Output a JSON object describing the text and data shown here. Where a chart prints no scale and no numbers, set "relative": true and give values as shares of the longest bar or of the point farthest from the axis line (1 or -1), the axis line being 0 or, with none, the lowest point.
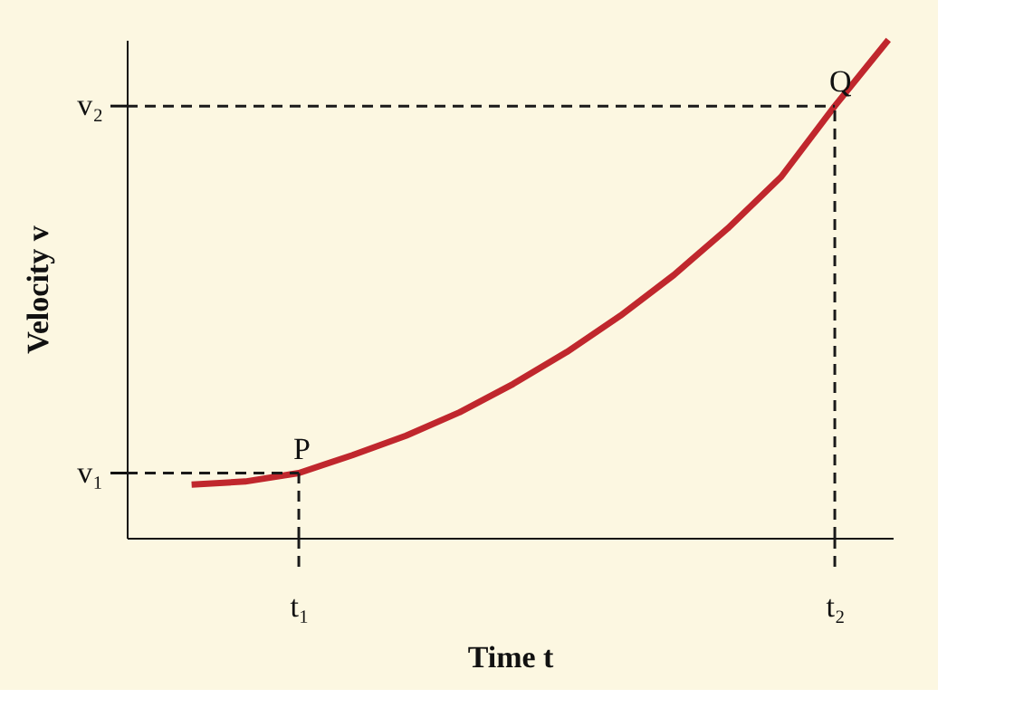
{
  "chart_data": {
    "type": "line",
    "xlabel": "Time t",
    "ylabel": "Velocity v",
    "relative": true,
    "grid": false,
    "marker": "none",
    "categories": [
      null,
      null,
      "t₁",
      null,
      null,
      null,
      null,
      null,
      null,
      null,
      null,
      null,
      "t₂",
      null
    ],
    "series": [
      {
        "color": "#c0272d",
        "line_style": "solid",
        "values": [
          0.107,
          0.113,
          0.13,
          0.166,
          0.205,
          0.252,
          0.309,
          0.373,
          0.446,
          0.528,
          0.621,
          0.725,
          0.867,
          1
        ]
      }
    ],
    "ref_lines": [
      {
        "axis": "y",
        "value": 0.13,
        "label": "v₁",
        "color": "#1a1a1a",
        "line_style": "dashed"
      },
      {
        "axis": "y",
        "value": 0.867,
        "label": "v₂",
        "color": "#1a1a1a",
        "line_style": "dashed"
      },
      {
        "axis": "x",
        "value": "t₁",
        "color": "#1a1a1a",
        "line_style": "dashed"
      },
      {
        "axis": "x",
        "value": "t₂",
        "color": "#1a1a1a",
        "line_style": "dashed"
      }
    ],
    "annotations": [
      {
        "text": "P",
        "x": "t₁",
        "y": 0.13
      },
      {
        "text": "Q",
        "x": "t₂",
        "y": 0.867
      }
    ]
  }
}
